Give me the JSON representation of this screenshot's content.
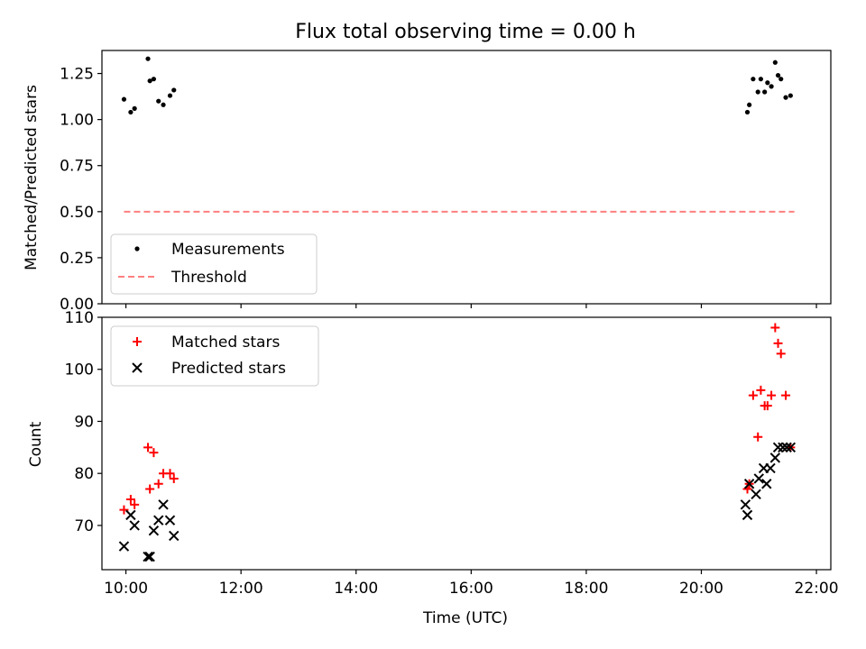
{
  "chart_data": [
    {
      "type": "scatter",
      "title": "Flux total observing time = 0.00 h",
      "xlabel": "",
      "ylabel": "Matched/Predicted stars",
      "xlim": [
        "09:35",
        "22:15"
      ],
      "ylim": [
        0,
        1.375
      ],
      "xticks": [
        "10:00",
        "12:00",
        "14:00",
        "16:00",
        "18:00",
        "20:00",
        "22:00"
      ],
      "yticks": [
        "0.00",
        "0.25",
        "0.50",
        "0.75",
        "1.00",
        "1.25"
      ],
      "legend": "lower-left",
      "series": [
        {
          "name": "Measurements",
          "marker": "dot",
          "color": "#000000",
          "x": [
            "09:58",
            "10:05",
            "10:09",
            "10:23",
            "10:25",
            "10:29",
            "10:34",
            "10:39",
            "10:46",
            "10:50",
            "20:48",
            "20:50",
            "20:54",
            "20:59",
            "21:02",
            "21:06",
            "21:09",
            "21:13",
            "21:17",
            "21:20",
            "21:23",
            "21:28",
            "21:33"
          ],
          "y": [
            1.11,
            1.04,
            1.06,
            1.33,
            1.21,
            1.22,
            1.1,
            1.08,
            1.13,
            1.16,
            1.04,
            1.08,
            1.22,
            1.15,
            1.22,
            1.15,
            1.2,
            1.18,
            1.31,
            1.24,
            1.22,
            1.12,
            1.13
          ]
        },
        {
          "name": "Threshold",
          "marker": "dashed-line",
          "color": "#ff7f7f",
          "x": [
            "09:58",
            "21:37"
          ],
          "y": [
            0.5,
            0.5
          ]
        }
      ]
    },
    {
      "type": "scatter",
      "title": "",
      "xlabel": "Time (UTC)",
      "ylabel": "Count",
      "xlim": [
        "09:35",
        "22:15"
      ],
      "ylim": [
        61.5,
        110
      ],
      "xticks": [
        "10:00",
        "12:00",
        "14:00",
        "16:00",
        "18:00",
        "20:00",
        "22:00"
      ],
      "yticks": [
        "70",
        "80",
        "90",
        "100",
        "110"
      ],
      "legend": "upper-left",
      "series": [
        {
          "name": "Matched stars",
          "marker": "plus",
          "color": "#ff0000",
          "x": [
            "09:58",
            "10:05",
            "10:09",
            "10:23",
            "10:25",
            "10:29",
            "10:34",
            "10:39",
            "10:46",
            "10:50",
            "20:48",
            "20:50",
            "20:54",
            "20:59",
            "21:02",
            "21:06",
            "21:09",
            "21:13",
            "21:17",
            "21:20",
            "21:23",
            "21:28",
            "21:33"
          ],
          "y": [
            73,
            75,
            74,
            85,
            77,
            84,
            78,
            80,
            80,
            79,
            77,
            78,
            95,
            87,
            96,
            93,
            93,
            95,
            108,
            105,
            103,
            95,
            85
          ]
        },
        {
          "name": "Predicted stars",
          "marker": "x",
          "color": "#000000",
          "x": [
            "09:58",
            "10:05",
            "10:09",
            "10:23",
            "10:25",
            "10:29",
            "10:34",
            "10:39",
            "10:46",
            "10:50",
            "20:46",
            "20:48",
            "20:50",
            "20:57",
            "21:00",
            "21:05",
            "21:08",
            "21:12",
            "21:17",
            "21:20",
            "21:25",
            "21:29",
            "21:33"
          ],
          "y": [
            66,
            72,
            70,
            64,
            64,
            69,
            71,
            74,
            71,
            68,
            74,
            72,
            78,
            76,
            79,
            81,
            78,
            81,
            83,
            85,
            85,
            85,
            85
          ]
        }
      ]
    }
  ]
}
